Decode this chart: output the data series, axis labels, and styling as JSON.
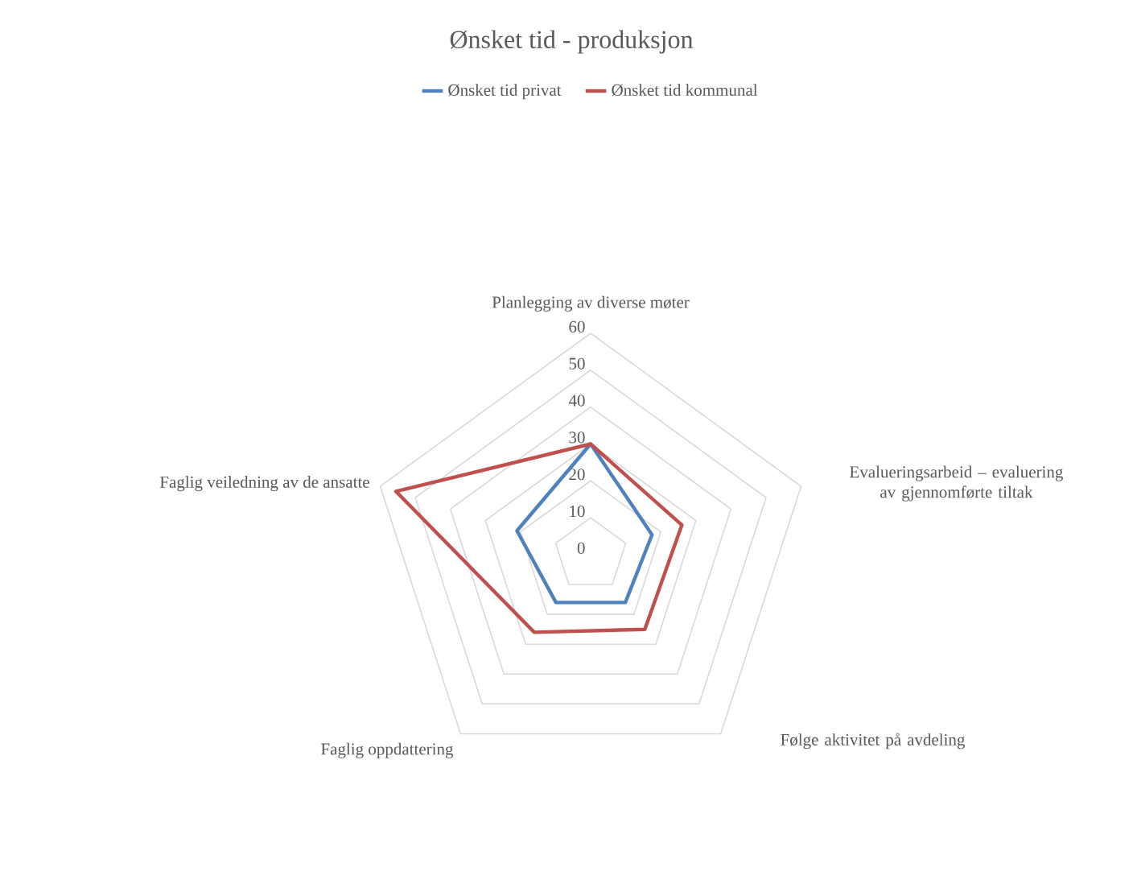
{
  "chart_data": {
    "type": "radar",
    "title": "Ønsket tid - produksjon",
    "categories": [
      "Planlegging av diverse møter",
      "Evalueringsarbeid – evaluering av gjennomførte tiltak",
      "Følge aktivitet på avdeling",
      "Faglig oppdattering",
      "Faglig veiledning av de ansatte"
    ],
    "series": [
      {
        "name": "Ønsket tid privat",
        "color": "#4f81bd",
        "values": [
          30,
          17.5,
          16,
          16,
          21
        ]
      },
      {
        "name": "Ønsket tid kommunal",
        "color": "#c0504d",
        "values": [
          30,
          26,
          25,
          26,
          55.5
        ]
      }
    ],
    "ylim": [
      0,
      60
    ],
    "yticks": [
      0,
      10,
      20,
      30,
      40,
      50,
      60
    ],
    "grid": true,
    "legend": "top"
  }
}
